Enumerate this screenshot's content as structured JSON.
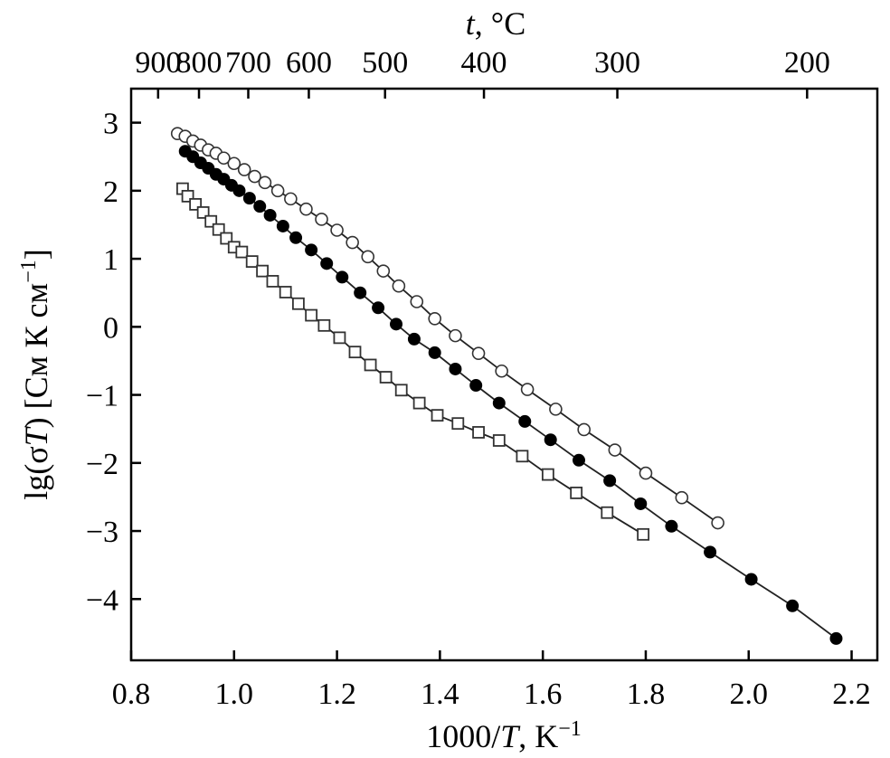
{
  "chart_data": {
    "type": "scatter",
    "xlabel": {
      "pre": "1000/",
      "italic": "T",
      "post": ", K",
      "sup": "−1"
    },
    "ylabel": {
      "pre": "lg(σ",
      "italic": "T",
      "post": ") [См К см",
      "sup": "−1",
      "close": "]"
    },
    "top_label": {
      "italic": "t",
      "post": ", °C"
    },
    "xlim": [
      0.8,
      2.25
    ],
    "ylim": [
      -4.9,
      3.5
    ],
    "x_ticks": [
      0.8,
      1.0,
      1.2,
      1.4,
      1.6,
      1.8,
      2.0,
      2.2
    ],
    "x_tick_labels": [
      "0.8",
      "1.0",
      "1.2",
      "1.4",
      "1.6",
      "1.8",
      "2.0",
      "2.2"
    ],
    "y_ticks": [
      3,
      2,
      1,
      0,
      -1,
      -2,
      -3,
      -4
    ],
    "y_tick_labels": [
      "3",
      "2",
      "1",
      "0",
      "−1",
      "−2",
      "−3",
      "−4"
    ],
    "top_ticks": [
      {
        "t": 900,
        "label": "900"
      },
      {
        "t": 800,
        "label": "800"
      },
      {
        "t": 700,
        "label": "700"
      },
      {
        "t": 600,
        "label": "600"
      },
      {
        "t": 500,
        "label": "500"
      },
      {
        "t": 400,
        "label": "400"
      },
      {
        "t": 300,
        "label": "300"
      },
      {
        "t": 200,
        "label": "200"
      }
    ],
    "grid": false,
    "legend": "none",
    "series": [
      {
        "marker": "open-circle",
        "x": [
          0.89,
          0.905,
          0.92,
          0.935,
          0.95,
          0.965,
          0.98,
          1.0,
          1.02,
          1.04,
          1.06,
          1.085,
          1.11,
          1.14,
          1.17,
          1.2,
          1.23,
          1.26,
          1.29,
          1.32,
          1.355,
          1.39,
          1.43,
          1.475,
          1.52,
          1.57,
          1.625,
          1.68,
          1.74,
          1.8,
          1.87,
          1.94
        ],
        "y": [
          2.84,
          2.8,
          2.73,
          2.67,
          2.6,
          2.55,
          2.48,
          2.4,
          2.31,
          2.21,
          2.12,
          2.0,
          1.88,
          1.73,
          1.58,
          1.42,
          1.24,
          1.03,
          0.82,
          0.6,
          0.37,
          0.12,
          -0.13,
          -0.39,
          -0.65,
          -0.92,
          -1.21,
          -1.51,
          -1.81,
          -2.15,
          -2.51,
          -2.88
        ]
      },
      {
        "marker": "filled-circle",
        "x": [
          0.905,
          0.92,
          0.935,
          0.95,
          0.965,
          0.98,
          0.995,
          1.01,
          1.03,
          1.05,
          1.07,
          1.095,
          1.12,
          1.15,
          1.18,
          1.21,
          1.245,
          1.28,
          1.315,
          1.35,
          1.39,
          1.43,
          1.47,
          1.515,
          1.565,
          1.615,
          1.67,
          1.73,
          1.79,
          1.85,
          1.925,
          2.005,
          2.085,
          2.17
        ],
        "y": [
          2.58,
          2.5,
          2.41,
          2.33,
          2.24,
          2.17,
          2.08,
          2.0,
          1.89,
          1.77,
          1.64,
          1.48,
          1.31,
          1.13,
          0.93,
          0.73,
          0.5,
          0.28,
          0.04,
          -0.18,
          -0.38,
          -0.62,
          -0.86,
          -1.12,
          -1.39,
          -1.66,
          -1.96,
          -2.26,
          -2.6,
          -2.93,
          -3.31,
          -3.71,
          -4.1,
          -4.58
        ]
      },
      {
        "marker": "open-square",
        "x": [
          0.9,
          0.91,
          0.925,
          0.94,
          0.955,
          0.97,
          0.985,
          1.0,
          1.015,
          1.035,
          1.055,
          1.075,
          1.1,
          1.125,
          1.15,
          1.175,
          1.205,
          1.235,
          1.265,
          1.295,
          1.325,
          1.36,
          1.395,
          1.435,
          1.475,
          1.515,
          1.56,
          1.61,
          1.665,
          1.725,
          1.795
        ],
        "y": [
          2.03,
          1.92,
          1.8,
          1.68,
          1.55,
          1.43,
          1.3,
          1.17,
          1.1,
          0.96,
          0.82,
          0.67,
          0.51,
          0.34,
          0.17,
          0.02,
          -0.16,
          -0.37,
          -0.56,
          -0.74,
          -0.93,
          -1.12,
          -1.3,
          -1.42,
          -1.55,
          -1.67,
          -1.9,
          -2.17,
          -2.44,
          -2.73,
          -3.05
        ]
      }
    ]
  }
}
